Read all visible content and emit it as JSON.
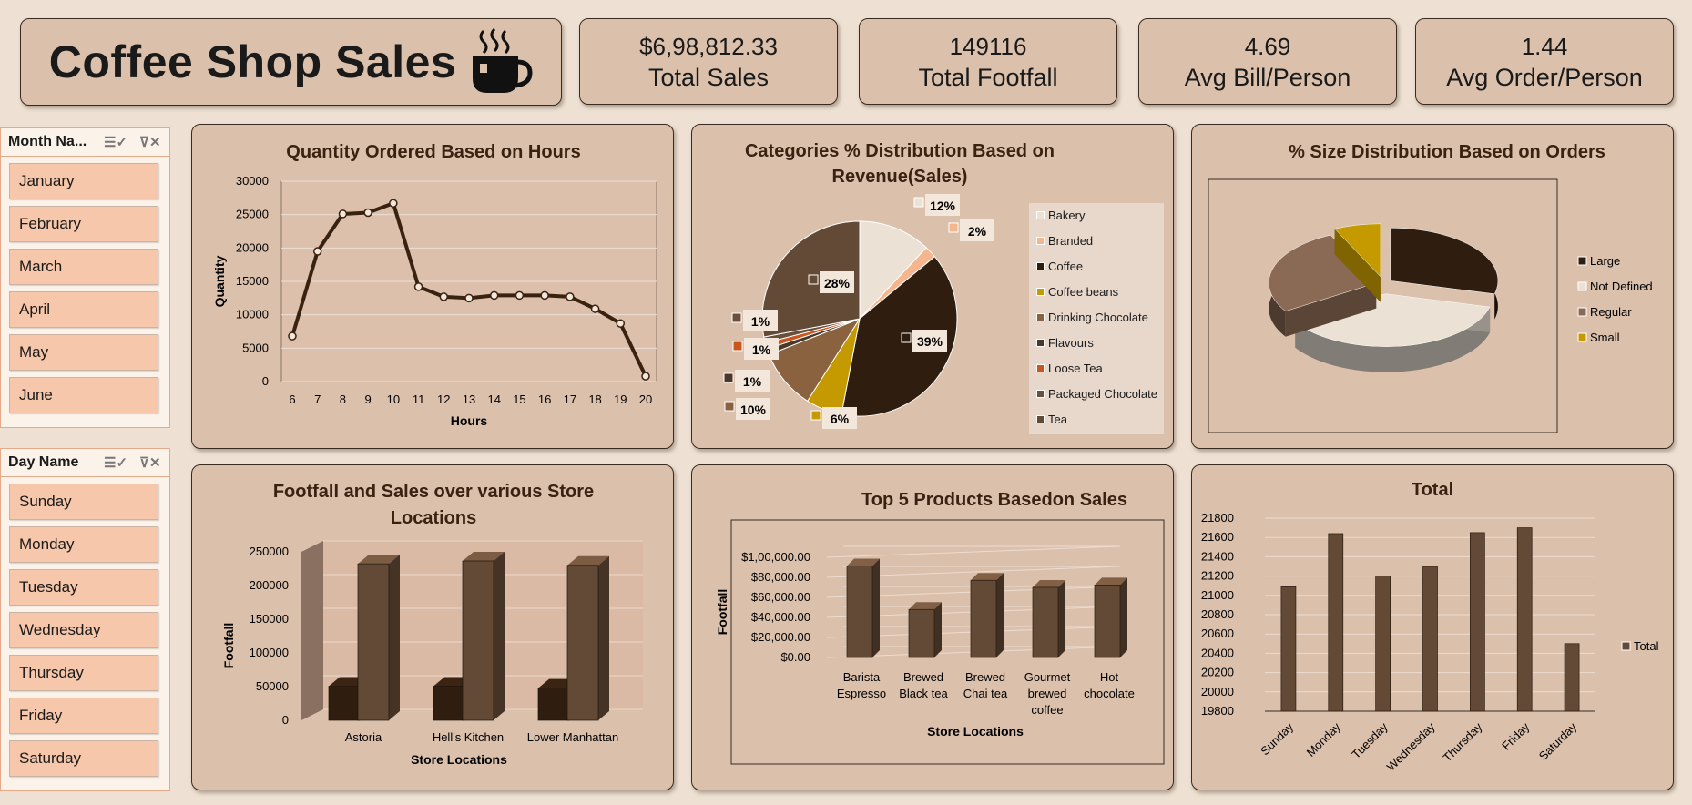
{
  "header": {
    "title": "Coffee Shop Sales",
    "logo_icon": "coffee-cup-icon"
  },
  "kpis": [
    {
      "value": "$6,98,812.33",
      "label": "Total Sales"
    },
    {
      "value": "149116",
      "label": "Total Footfall"
    },
    {
      "value": "4.69",
      "label": "Avg Bill/Person"
    },
    {
      "value": "1.44",
      "label": "Avg Order/Person"
    }
  ],
  "slicers": {
    "month": {
      "header": "Month Na...",
      "items": [
        "January",
        "February",
        "March",
        "April",
        "May",
        "June"
      ]
    },
    "day": {
      "header": "Day Name",
      "items": [
        "Sunday",
        "Monday",
        "Tuesday",
        "Wednesday",
        "Thursday",
        "Friday",
        "Saturday"
      ]
    }
  },
  "colors": {
    "dark": "#2f1d10",
    "brown": "#634a36",
    "beige": "#ebe1d5",
    "accent": "#c49a00",
    "orange": "#c8561e",
    "bg_card": "#dbc0ac"
  },
  "charts": {
    "hours": {
      "title": "Quantity Ordered Based on Hours"
    },
    "categories": {
      "title_line1": "Categories % Distribution Based on",
      "title_line2": "Revenue(Sales)"
    },
    "size": {
      "title": "% Size Distribution Based on Orders"
    },
    "stores": {
      "title_line1": "Footfall and Sales over various Store",
      "title_line2": "Locations"
    },
    "products": {
      "title": "Top 5 Products Basedon Sales"
    },
    "days": {
      "title": "Total"
    }
  },
  "chart_data": [
    {
      "type": "line",
      "title": "Quantity Ordered Based on Hours",
      "xlabel": "Hours",
      "ylabel": "Quantity",
      "x": [
        6,
        7,
        8,
        9,
        10,
        11,
        12,
        13,
        14,
        15,
        16,
        17,
        18,
        19,
        20
      ],
      "values": [
        6800,
        19500,
        25100,
        25300,
        26700,
        14200,
        12700,
        12500,
        12900,
        12900,
        12900,
        12700,
        10900,
        8700,
        800
      ],
      "ylim": [
        0,
        30000
      ],
      "yticks": [
        "0",
        "5000",
        "10000",
        "15000",
        "20000",
        "25000",
        "30000"
      ]
    },
    {
      "type": "pie",
      "title": "Categories % Distribution Based on Revenue(Sales)",
      "categories": [
        "Bakery",
        "Branded",
        "Coffee",
        "Coffee beans",
        "Drinking Chocolate",
        "Flavours",
        "Loose Tea",
        "Packaged Chocolate",
        "Tea"
      ],
      "values": [
        12,
        2,
        39,
        6,
        10,
        1,
        1,
        1,
        28
      ],
      "labels": [
        "12%",
        "2%",
        "39%",
        "6%",
        "10%",
        "1%",
        "1%",
        "1%",
        "28%"
      ],
      "colors": [
        "#ebe1d5",
        "#f5b58d",
        "#2f1d10",
        "#c49a00",
        "#8a6240",
        "#4a3828",
        "#c8561e",
        "#6b4f3a",
        "#634a36"
      ]
    },
    {
      "type": "pie",
      "title": "% Size Distribution Based on Orders",
      "categories": [
        "Large",
        "Not Defined",
        "Regular",
        "Small"
      ],
      "values": [
        29,
        37,
        27,
        7
      ],
      "colors": [
        "#2f1d10",
        "#ebe1d5",
        "#8a6a54",
        "#c49a00"
      ]
    },
    {
      "type": "bar",
      "title": "Footfall and Sales over various Store Locations",
      "xlabel": "Store Locations",
      "ylabel": "Footfall",
      "categories": [
        "Astoria",
        "Hell's Kitchen",
        "Lower Manhattan"
      ],
      "series": [
        {
          "values": [
            50599,
            50735,
            47782
          ]
        },
        {
          "values": [
            232244,
            236511,
            230057
          ]
        }
      ],
      "ylim": [
        0,
        250000
      ],
      "yticks": [
        "0",
        "50000",
        "100000",
        "150000",
        "200000",
        "250000"
      ]
    },
    {
      "type": "bar",
      "title": "Top 5 Products Basedon Sales",
      "xlabel": "Store Locations",
      "ylabel": "Footfall",
      "categories": [
        "Barista Espresso",
        "Brewed Black tea",
        "Brewed Chai tea",
        "Gourmet brewed coffee",
        "Hot chocolate"
      ],
      "category_lines": [
        [
          "Barista",
          "Espresso"
        ],
        [
          "Brewed",
          "Black tea"
        ],
        [
          "Brewed",
          "Chai tea"
        ],
        [
          "Gourmet",
          "brewed",
          "coffee"
        ],
        [
          "Hot",
          "chocolate"
        ]
      ],
      "values": [
        91406,
        47932,
        77082,
        70034,
        72416
      ],
      "ylim": [
        0,
        100000
      ],
      "yticks": [
        "$0.00",
        "$20,000.00",
        "$40,000.00",
        "$60,000.00",
        "$80,000.00",
        "$1,00,000.00"
      ]
    },
    {
      "type": "bar",
      "title": "Total",
      "categories": [
        "Sunday",
        "Monday",
        "Tuesday",
        "Wednesday",
        "Thursday",
        "Friday",
        "Saturday"
      ],
      "series": [
        {
          "name": "Total",
          "values": [
            21090,
            21640,
            21200,
            21300,
            21650,
            21700,
            20500
          ]
        }
      ],
      "ylim": [
        19800,
        21800
      ],
      "yticks": [
        "19800",
        "20000",
        "20200",
        "20400",
        "20600",
        "20800",
        "21000",
        "21200",
        "21400",
        "21600",
        "21800"
      ]
    }
  ]
}
